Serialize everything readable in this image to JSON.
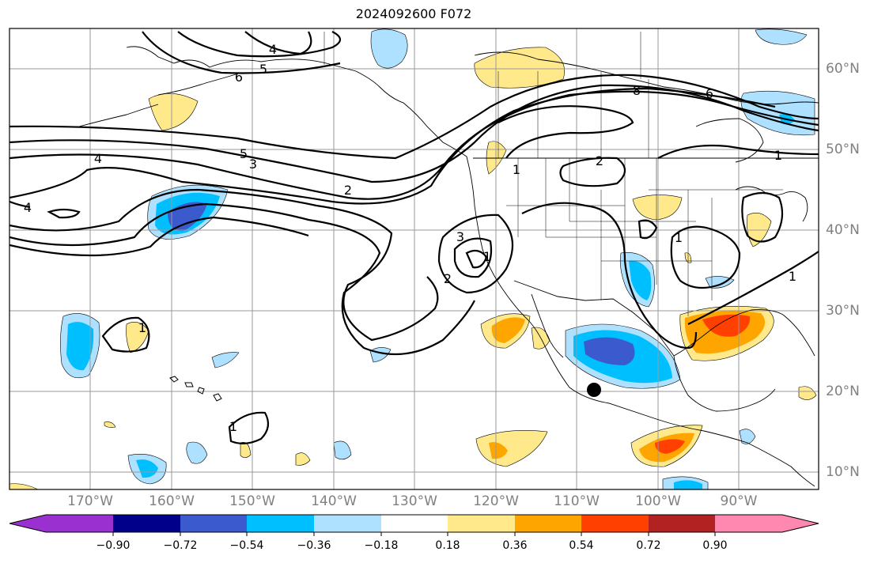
{
  "title": "2024092600 F072",
  "lon_labels": [
    "170°W",
    "160°W",
    "150°W",
    "140°W",
    "130°W",
    "120°W",
    "110°W",
    "100°W",
    "90°W"
  ],
  "lat_labels": [
    "60°N",
    "50°N",
    "40°N",
    "30°N",
    "20°N",
    "10°N"
  ],
  "colorbar": {
    "ticks": [
      "−0.90",
      "−0.72",
      "−0.54",
      "−0.36",
      "−0.18",
      "0.18",
      "0.36",
      "0.54",
      "0.72",
      "0.90"
    ],
    "colors": [
      "#9b30d0",
      "#00008b",
      "#3a5acd",
      "#00bfff",
      "#aee0ff",
      "#ffffff",
      "#ffe98a",
      "#ffa500",
      "#ff4000",
      "#b22222",
      "#ff88b0"
    ]
  },
  "contour_labels": [
    {
      "text": "4"
    },
    {
      "text": "6"
    },
    {
      "text": "5"
    },
    {
      "text": "4"
    },
    {
      "text": "5"
    },
    {
      "text": "3"
    },
    {
      "text": "2"
    },
    {
      "text": "1"
    },
    {
      "text": "2"
    },
    {
      "text": "1"
    },
    {
      "text": "8"
    },
    {
      "text": "6"
    },
    {
      "text": "1"
    },
    {
      "text": "3"
    },
    {
      "text": "2"
    },
    {
      "text": "1"
    },
    {
      "text": "1"
    },
    {
      "text": "1"
    },
    {
      "text": "1"
    },
    {
      "text": "4"
    }
  ]
}
